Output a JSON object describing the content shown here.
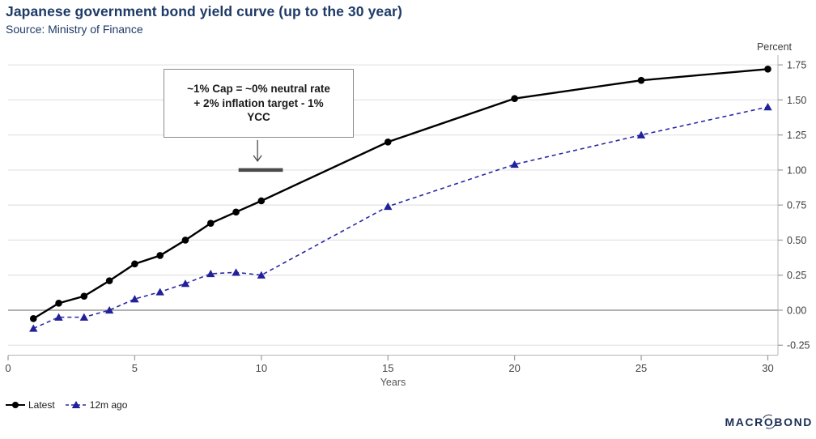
{
  "header": {
    "title": "Japanese government bond yield curve (up to the 30 year)",
    "source": "Source: Ministry of Finance"
  },
  "chart_data": {
    "type": "line",
    "title": "Japanese government bond yield curve (up to the 30 year)",
    "x": [
      1,
      2,
      3,
      4,
      5,
      6,
      7,
      8,
      9,
      10,
      15,
      20,
      25,
      30
    ],
    "series": [
      {
        "name": "Latest",
        "color": "#000000",
        "line_style": "solid",
        "marker": "circle",
        "values": [
          -0.06,
          0.05,
          0.1,
          0.21,
          0.33,
          0.39,
          0.5,
          0.62,
          0.7,
          0.78,
          1.2,
          1.51,
          1.64,
          1.72
        ]
      },
      {
        "name": "12m ago",
        "color": "#2929a3",
        "line_style": "dashed",
        "marker": "triangle",
        "values": [
          -0.13,
          -0.05,
          -0.05,
          0.0,
          0.08,
          0.13,
          0.19,
          0.26,
          0.27,
          0.25,
          0.74,
          1.04,
          1.25,
          1.45
        ]
      }
    ],
    "xlabel": "Years",
    "ylabel": "Percent",
    "x_ticks": [
      0,
      5,
      10,
      15,
      20,
      25,
      30
    ],
    "y_ticks": [
      -0.25,
      0.0,
      0.25,
      0.5,
      0.75,
      1.0,
      1.25,
      1.5,
      1.75
    ],
    "xlim": [
      0,
      30.4
    ],
    "ylim": [
      -0.318,
      1.82
    ],
    "grid": true,
    "legend_position": "bottom-left"
  },
  "annotation": {
    "lines": [
      "~1% Cap = ~0% neutral rate",
      "+ 2% inflation target - 1%",
      "YCC"
    ],
    "arrow_to": {
      "year": 9.85,
      "value": 1.0
    },
    "cap_segment": {
      "from_year": 9.1,
      "to_year": 10.85,
      "value": 1.0
    }
  },
  "logo": {
    "pre": "MACR",
    "o": "O",
    "post": "BOND"
  },
  "colors": {
    "title": "#1e3a67",
    "grid": "#e5e5e5",
    "zero_line": "#a6a6a6",
    "axis": "#b5b5b5",
    "tick": "#9a9a9a",
    "tick_text": "#3d3d3d",
    "cap_bar": "#4a4a4a",
    "arrow": "#4a4a4a",
    "logo": "#1b2e55"
  }
}
